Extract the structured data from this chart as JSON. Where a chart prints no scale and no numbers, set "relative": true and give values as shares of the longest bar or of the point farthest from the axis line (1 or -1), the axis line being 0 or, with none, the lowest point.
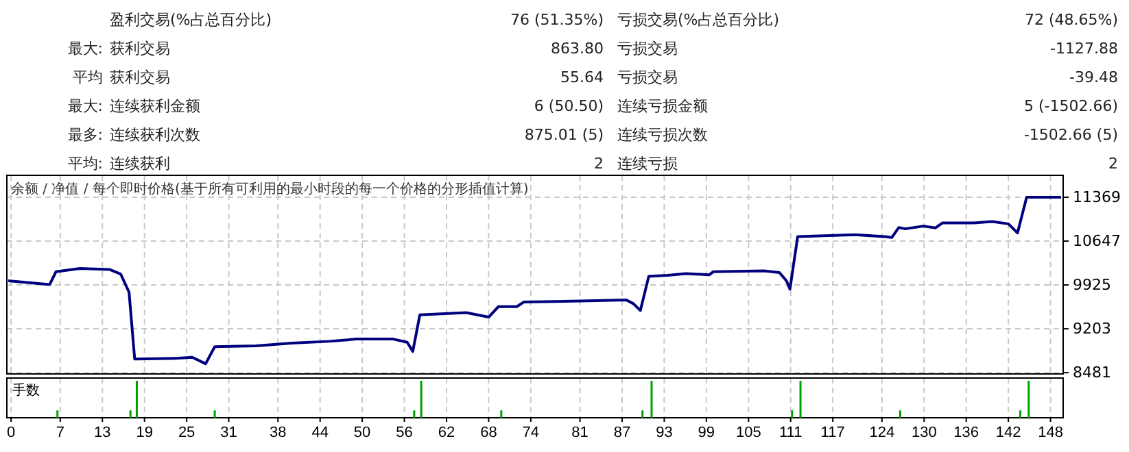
{
  "chart_data": [
    {
      "type": "other",
      "annotations": [
        "盈利交易(%占总百分比)",
        "76 (51.35%)",
        "亏损交易(%占总百分比)",
        "72 (48.65%)",
        "最大:",
        "获利交易",
        "863.80",
        "亏损交易",
        "-1127.88",
        "平均",
        "获利交易",
        "55.64",
        "亏损交易",
        "-39.48",
        "最大:",
        "连续获利金额",
        "6 (50.50)",
        "连续亏损金额",
        "5 (-1502.66)",
        "最多:",
        "连续获利次数",
        "875.01 (5)",
        "连续亏损次数",
        "-1502.66 (5)",
        "平均:",
        "连续获利",
        "2",
        "连续亏损",
        "2"
      ]
    },
    {
      "type": "line",
      "title": "余额 / 净值 / 每个即时价格(基于所有可利用的最小时段的每一个价格的分形插值计算)",
      "series": [
        {
          "color": "#00007f",
          "x": [
            -0.4,
            5.5,
            6.4,
            9.8,
            14,
            15.6,
            16.8,
            17.6,
            23.8,
            25.8,
            27.7,
            29,
            34.9,
            40,
            45.3,
            49.2,
            54.4,
            56.4,
            57.2,
            58.2,
            64.8,
            68,
            69.4,
            72,
            73,
            78.8,
            87.6,
            88.6,
            89.6,
            90.8,
            93.5,
            96.1,
            99.4,
            100,
            107.2,
            109.4,
            110.4,
            110.9,
            112,
            120.2,
            124.4,
            125.4,
            126.4,
            127.3,
            129.9,
            131.6,
            132.6,
            137.1,
            139.7,
            142,
            143.3,
            144.6,
            149.5
          ],
          "values": [
            9993,
            9932,
            10144,
            10196,
            10180,
            10106,
            9805,
            8705,
            8718,
            8734,
            8628,
            8908,
            8922,
            8967,
            8997,
            9034,
            9034,
            8981,
            8831,
            9432,
            9470,
            9395,
            9568,
            9568,
            9643,
            9655,
            9677,
            9617,
            9504,
            10068,
            10083,
            10113,
            10091,
            10144,
            10158,
            10128,
            9993,
            9857,
            10721,
            10751,
            10721,
            10706,
            10871,
            10849,
            10894,
            10864,
            10946,
            10946,
            10969,
            10931,
            10781,
            11369,
            11369
          ]
        }
      ],
      "xlim": [
        -0.6,
        149.8
      ],
      "xticks": [
        0,
        7,
        13,
        19,
        25,
        31,
        38,
        44,
        50,
        56,
        62,
        68,
        74,
        81,
        87,
        93,
        99,
        105,
        111,
        117,
        124,
        130,
        136,
        142,
        148
      ],
      "ylim": [
        8460,
        11730
      ],
      "yticks": [
        8481,
        9203,
        9925,
        10647,
        11369
      ],
      "grid": true,
      "tick_labels": "y"
    },
    {
      "type": "bar",
      "ylabel": "手数",
      "relative": true,
      "color": "#00a000",
      "x": [
        6.6,
        17,
        17.9,
        29,
        57.4,
        58.4,
        69.8,
        89.9,
        91.2,
        111.2,
        112.4,
        126.6,
        143.7,
        144.9
      ],
      "values": [
        0.2,
        0.2,
        1,
        0.2,
        0.2,
        1,
        0.2,
        0.2,
        1,
        0.2,
        1,
        0.2,
        0.2,
        1
      ],
      "xlim": [
        -0.6,
        149.8
      ],
      "xticks": [
        0,
        7,
        13,
        19,
        25,
        31,
        38,
        44,
        50,
        56,
        62,
        68,
        74,
        81,
        87,
        93,
        99,
        105,
        111,
        117,
        124,
        130,
        136,
        142,
        148
      ],
      "grid": "x",
      "tick_labels": "x"
    }
  ]
}
